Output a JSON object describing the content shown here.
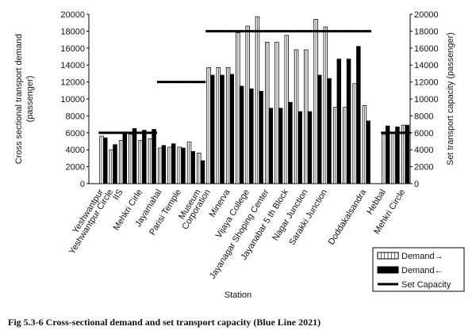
{
  "chart_data": {
    "type": "bar",
    "ylabel": [
      "Cross sectional transport demand",
      "(passenger)"
    ],
    "y2label": "Set transport capacity (passenger)",
    "xlabel": "Station",
    "caption": "Fig 5.3-6 Cross-sectional demand and set transport capacity (Blue Line 2021)",
    "categories": [
      null,
      "Yeshwantpur",
      "Yeshwantpur Circle",
      "IIS",
      null,
      "Mehkri Cirle",
      null,
      "Jayamahal",
      null,
      "Parisi Temple",
      null,
      "Museum",
      "Corporation",
      null,
      "Minerva",
      null,
      "Vijaya College",
      null,
      "Jayanagar Shoping Center",
      null,
      "Jayanabar 5 th Block",
      null,
      "Nagar Junction",
      null,
      "Sarakki Junction",
      null,
      null,
      null,
      "Doddakalsandra",
      null,
      "Hebbal",
      null,
      "Mehkri Circle"
    ],
    "series": [
      {
        "name": "Demand→",
        "color": "#ffffff",
        "values": [
          null,
          5600,
          4000,
          5100,
          5800,
          5100,
          5300,
          4200,
          4300,
          4300,
          4900,
          3600,
          13700,
          13700,
          13700,
          17800,
          18600,
          19700,
          16700,
          16700,
          17500,
          15800,
          15800,
          19400,
          18500,
          9000,
          9000,
          11800,
          9200,
          null,
          5800,
          6000,
          6900
        ]
      },
      {
        "name": "Demand←",
        "color": "#000000",
        "values": [
          null,
          5400,
          4600,
          5900,
          6500,
          6300,
          6400,
          4500,
          4700,
          4200,
          3800,
          2700,
          12800,
          12800,
          12900,
          11500,
          11200,
          10900,
          8900,
          8900,
          9600,
          8500,
          8500,
          12800,
          12400,
          14700,
          14700,
          16200,
          7400,
          null,
          6800,
          6700,
          6900
        ]
      },
      {
        "name": "Set Capacity",
        "color": "#000000",
        "type": "line",
        "axis": "y2",
        "values": [
          null,
          6000,
          6000,
          6000,
          6000,
          6000,
          6000,
          12000,
          12000,
          12000,
          12000,
          12000,
          18000,
          18000,
          18000,
          18000,
          18000,
          18000,
          18000,
          18000,
          18000,
          18000,
          18000,
          18000,
          18000,
          18000,
          18000,
          18000,
          18000,
          null,
          6000,
          6000,
          6000
        ]
      }
    ],
    "ylim": [
      0,
      20000
    ],
    "yticks": [
      0,
      2000,
      4000,
      6000,
      8000,
      10000,
      12000,
      14000,
      16000,
      18000,
      20000
    ],
    "y2lim": [
      0,
      20000
    ],
    "y2ticks": [
      0,
      2000,
      4000,
      6000,
      8000,
      10000,
      12000,
      14000,
      16000,
      18000,
      20000
    ],
    "grid": false,
    "legend": "lower right"
  }
}
